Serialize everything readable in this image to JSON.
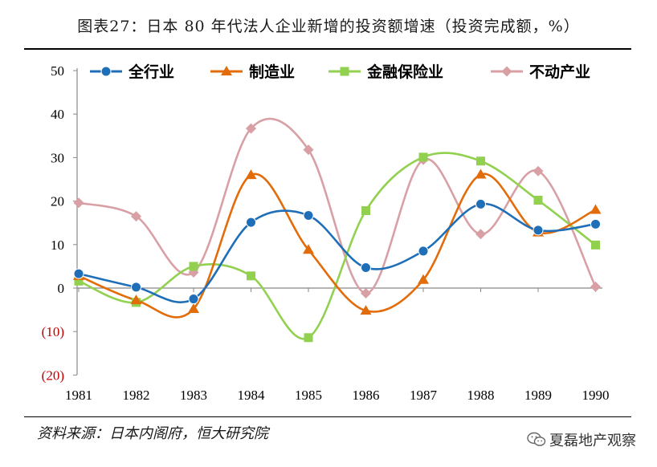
{
  "figure_title": "图表27：日本 80 年代法人企业新增的投资额增速（投资完成额，%）",
  "source": "资料来源：日本内阁府，恒大研究院",
  "watermark": "夏磊地产观察",
  "chart_data": {
    "type": "line",
    "smooth": true,
    "title": "图表27：日本 80 年代法人企业新增的投资额增速（投资完成额，%）",
    "xlabel": "",
    "ylabel": "",
    "categories": [
      "1981",
      "1982",
      "1983",
      "1984",
      "1985",
      "1986",
      "1987",
      "1988",
      "1989",
      "1990"
    ],
    "ylim": [
      -20,
      50
    ],
    "yticks": [
      -20,
      -10,
      0,
      10,
      20,
      30,
      40,
      50
    ],
    "ytick_labels": [
      "(20)",
      "(10)",
      "0",
      "10",
      "20",
      "30",
      "40",
      "50"
    ],
    "negative_tick_color": "#c00000",
    "positive_tick_color": "#000000",
    "grid": false,
    "legend_position": "top",
    "series": [
      {
        "name": "全行业",
        "marker": "circle",
        "color": "#1f6fb8",
        "values": [
          3.3,
          0.2,
          -2.5,
          15.1,
          16.7,
          4.7,
          8.5,
          19.3,
          13.3,
          14.7
        ]
      },
      {
        "name": "制造业",
        "marker": "triangle",
        "color": "#e36c0a",
        "values": [
          2.8,
          -2.8,
          -4.8,
          26.0,
          8.8,
          -5.2,
          1.9,
          26.1,
          12.8,
          18.0
        ]
      },
      {
        "name": "金融保险业",
        "marker": "square",
        "color": "#92d050",
        "values": [
          1.6,
          -3.3,
          5.0,
          2.8,
          -11.4,
          17.8,
          30.1,
          29.2,
          20.2,
          9.9
        ]
      },
      {
        "name": "不动产业",
        "marker": "diamond",
        "color": "#d8a0a4",
        "values": [
          19.6,
          16.5,
          3.6,
          36.7,
          31.8,
          -1.2,
          29.5,
          12.4,
          26.9,
          0.3
        ]
      }
    ]
  }
}
